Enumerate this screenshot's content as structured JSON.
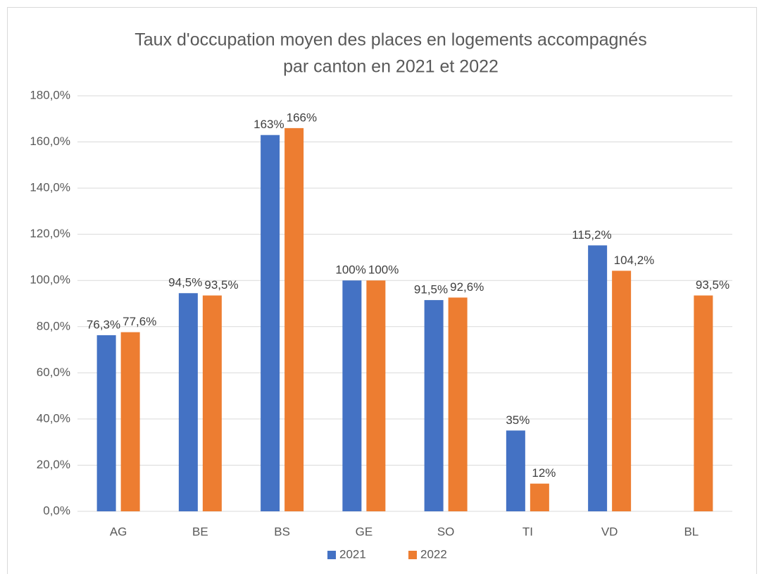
{
  "chart_data": {
    "type": "bar",
    "title": [
      "Taux d'occupation moyen des places en logements accompagnés",
      "par canton en 2021 et 2022"
    ],
    "categories": [
      "AG",
      "BE",
      "BS",
      "GE",
      "SO",
      "TI",
      "VD",
      "BL"
    ],
    "series": [
      {
        "name": "2021",
        "color": "#4472c4",
        "values": [
          76.3,
          94.5,
          163,
          100,
          91.5,
          35,
          115.2,
          null
        ],
        "value_labels": [
          "76,3%",
          "94,5%",
          "163%",
          "100%",
          "91,5%",
          "35%",
          "115,2%",
          null
        ]
      },
      {
        "name": "2022",
        "color": "#ed7d31",
        "values": [
          77.6,
          93.5,
          166,
          100,
          92.6,
          12,
          104.2,
          93.5
        ],
        "value_labels": [
          "77,6%",
          "93,5%",
          "166%",
          "100%",
          "92,6%",
          "12%",
          "104,2%",
          "93,5%"
        ]
      }
    ],
    "ylim": [
      0,
      180
    ],
    "yticks": [
      {
        "value": 0,
        "label": "0,0%"
      },
      {
        "value": 20,
        "label": "20,0%"
      },
      {
        "value": 40,
        "label": "40,0%"
      },
      {
        "value": 60,
        "label": "60,0%"
      },
      {
        "value": 80,
        "label": "80,0%"
      },
      {
        "value": 100,
        "label": "100,0%"
      },
      {
        "value": 120,
        "label": "120,0%"
      },
      {
        "value": 140,
        "label": "140,0%"
      },
      {
        "value": 160,
        "label": "160,0%"
      },
      {
        "value": 180,
        "label": "180,0%"
      }
    ],
    "grid": true,
    "legend": "bottom"
  }
}
